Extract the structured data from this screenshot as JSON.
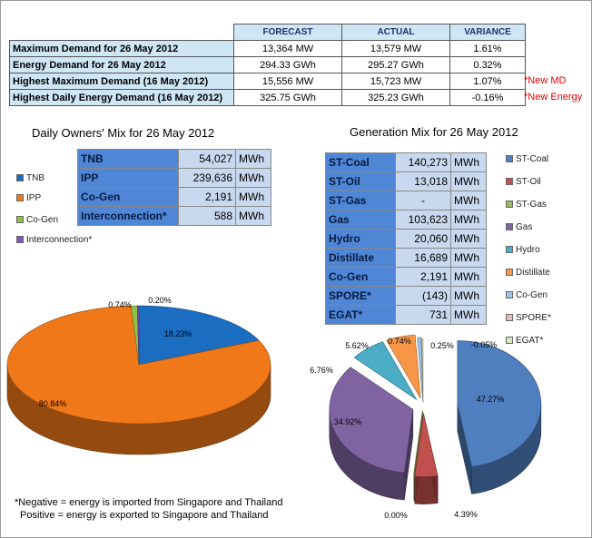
{
  "summary": {
    "headers": [
      "FORECAST",
      "ACTUAL",
      "VARIANCE"
    ],
    "rows": [
      {
        "label": "Maximum Demand for 26 May 2012",
        "forecast": "13,364 MW",
        "actual": "13,579 MW",
        "variance": "1.61%",
        "note": ""
      },
      {
        "label": "Energy Demand for 26 May 2012",
        "forecast": "294.33 GWh",
        "actual": "295.27 GWh",
        "variance": "0.32%",
        "note": ""
      },
      {
        "label": "Highest Maximum Demand (16 May 2012)",
        "forecast": "15,556 MW",
        "actual": "15,723 MW",
        "variance": "1.07%",
        "note": "*New MD"
      },
      {
        "label": "Highest Daily Energy Demand (16 May 2012)",
        "forecast": "325.75 GWh",
        "actual": "325.23 GWh",
        "variance": "-0.16%",
        "note": "*New Energy"
      }
    ],
    "note_color": "#e00000"
  },
  "owners": {
    "title": "Daily Owners' Mix for 26 May 2012",
    "table": [
      {
        "name": "TNB",
        "value": "54,027",
        "unit": "MWh"
      },
      {
        "name": "IPP",
        "value": "239,636",
        "unit": "MWh"
      },
      {
        "name": "Co-Gen",
        "value": "2,191",
        "unit": "MWh"
      },
      {
        "name": "Interconnection*",
        "value": "588",
        "unit": "MWh"
      }
    ],
    "legend": [
      {
        "label": "TNB",
        "color": "#1b6dc1"
      },
      {
        "label": "IPP",
        "color": "#f07818"
      },
      {
        "label": "Co-Gen",
        "color": "#8bc34a"
      },
      {
        "label": "Interconnection*",
        "color": "#7e57c2"
      }
    ]
  },
  "generation": {
    "title": "Generation Mix for 26 May 2012",
    "table": [
      {
        "name": "ST-Coal",
        "value": "140,273",
        "unit": "MWh"
      },
      {
        "name": "ST-Oil",
        "value": "13,018",
        "unit": "MWh"
      },
      {
        "name": "ST-Gas",
        "value": "-",
        "unit": "MWh"
      },
      {
        "name": "Gas",
        "value": "103,623",
        "unit": "MWh"
      },
      {
        "name": "Hydro",
        "value": "20,060",
        "unit": "MWh"
      },
      {
        "name": "Distillate",
        "value": "16,689",
        "unit": "MWh"
      },
      {
        "name": "Co-Gen",
        "value": "2,191",
        "unit": "MWh"
      },
      {
        "name": "SPORE*",
        "value": "(143)",
        "unit": "MWh"
      },
      {
        "name": "EGAT*",
        "value": "731",
        "unit": "MWh"
      }
    ],
    "legend": [
      {
        "label": "ST-Coal",
        "color": "#4f7fbf"
      },
      {
        "label": "ST-Oil",
        "color": "#c0504d"
      },
      {
        "label": "ST-Gas",
        "color": "#9bbb59"
      },
      {
        "label": "Gas",
        "color": "#8064a2"
      },
      {
        "label": "Hydro",
        "color": "#4bacc6"
      },
      {
        "label": "Distillate",
        "color": "#f79646"
      },
      {
        "label": "Co-Gen",
        "color": "#9dc3e6"
      },
      {
        "label": "SPORE*",
        "color": "#e6b9b8"
      },
      {
        "label": "EGAT*",
        "color": "#d7e4bd"
      }
    ]
  },
  "footnote": {
    "line1": "*Negative = energy is imported from Singapore and Thailand",
    "line2": "Positive = energy is exported to Singapore and Thailand"
  },
  "chart_data": [
    {
      "type": "pie",
      "title": "Daily Owners' Mix for 26 May 2012",
      "categories": [
        "TNB",
        "IPP",
        "Co-Gen",
        "Interconnection*"
      ],
      "values": [
        18.23,
        80.84,
        0.74,
        0.2
      ],
      "labels": [
        "18.23%",
        "80.84%",
        "0.74%",
        "0.20%"
      ],
      "colors": [
        "#1b6dc1",
        "#f07818",
        "#8bc34a",
        "#7e57c2"
      ],
      "legend": "left",
      "style": "3d"
    },
    {
      "type": "pie",
      "title": "Generation Mix for 26 May 2012",
      "categories": [
        "ST-Coal",
        "ST-Oil",
        "ST-Gas",
        "Gas",
        "Hydro",
        "Distillate",
        "Co-Gen",
        "SPORE*",
        "EGAT*"
      ],
      "values": [
        47.27,
        4.39,
        0.0,
        34.92,
        6.76,
        5.62,
        0.74,
        -0.05,
        0.25
      ],
      "labels": [
        "47.27%",
        "4.39%",
        "0.00%",
        "34.92%",
        "6.76%",
        "5.62%",
        "0.74%",
        "-0.05%",
        "0.25%"
      ],
      "colors": [
        "#4f7fbf",
        "#c0504d",
        "#9bbb59",
        "#8064a2",
        "#4bacc6",
        "#f79646",
        "#9dc3e6",
        "#e6b9b8",
        "#d7e4bd"
      ],
      "legend": "right",
      "style": "3d-exploded"
    }
  ]
}
